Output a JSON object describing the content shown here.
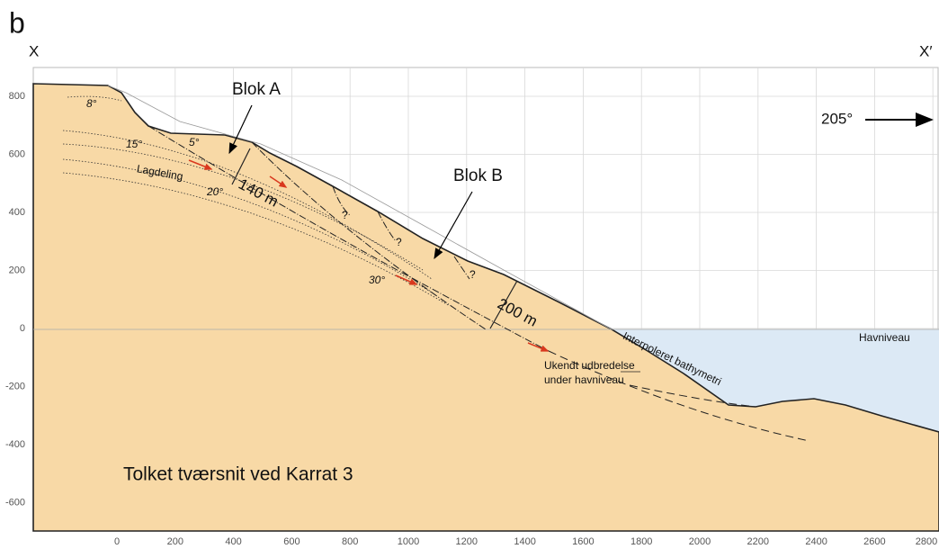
{
  "panel_label": "b",
  "left_end": "X",
  "right_end": "X′",
  "direction": "205°",
  "x_axis": {
    "ticks": [
      "0",
      "200",
      "400",
      "600",
      "800",
      "1000",
      "1200",
      "1400",
      "1600",
      "1800",
      "2000",
      "2200",
      "2400",
      "2600",
      "2800"
    ]
  },
  "y_axis": {
    "ticks": [
      "800",
      "600",
      "400",
      "200",
      "0",
      "-200",
      "-400",
      "-600"
    ]
  },
  "annotations": {
    "block_a": "Blok A",
    "block_b": "Blok B",
    "thickness_a": "140 m",
    "thickness_b": "200 m",
    "dip_8": "8°",
    "dip_15": "15°",
    "dip_5": "5°",
    "layering": "Lagdeling",
    "dip_20": "20°",
    "dip_30": "30°",
    "question_1": "?",
    "question_2": "?",
    "question_3": "?",
    "bathymetry": "Interpoleret bathymetri",
    "unknown_1": "Ukendt udbredelse",
    "unknown_2": "under havniveau",
    "sea_level": "Havniveau",
    "title": "Tolket tværsnit ved Karrat 3"
  }
}
